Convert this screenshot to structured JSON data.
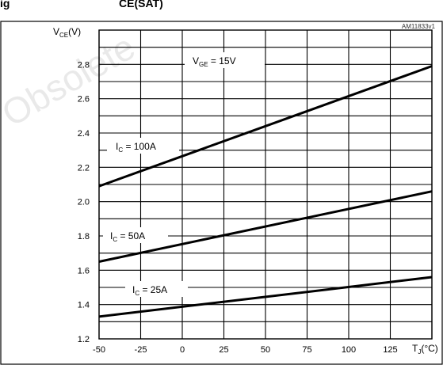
{
  "header": {
    "fragment": "ig",
    "fragment2": "CE(SAT)"
  },
  "watermark": "Obsolete",
  "chart_data": {
    "type": "line",
    "code": "AM11833v1",
    "ylabel": {
      "main": "V",
      "sub": "CE",
      "unit": "(V)"
    },
    "xlabel": {
      "main": "T",
      "sub": "J",
      "unit": "(°C)"
    },
    "xlim": [
      -50,
      150
    ],
    "ylim": [
      1.2,
      3.0
    ],
    "x_ticks": [
      "-50",
      "-25",
      "0",
      "25",
      "50",
      "75",
      "100",
      "125"
    ],
    "y_ticks": [
      "1.2",
      "1.4",
      "1.6",
      "1.8",
      "2.0",
      "2.2",
      "2.4",
      "2.6",
      "2.8"
    ],
    "annotations": {
      "vge": {
        "main": "V",
        "sub": "GE",
        "rest": " = 15V"
      }
    },
    "series": [
      {
        "name": "100A",
        "label": {
          "main": "I",
          "sub": "C",
          "rest": " = 100A"
        },
        "x": [
          -50,
          150
        ],
        "y": [
          2.09,
          2.79
        ]
      },
      {
        "name": "50A",
        "label": {
          "main": "I",
          "sub": "C",
          "rest": " = 50A"
        },
        "x": [
          -50,
          150
        ],
        "y": [
          1.65,
          2.06
        ]
      },
      {
        "name": "25A",
        "label": {
          "main": "I",
          "sub": "C",
          "rest": " = 25A"
        },
        "x": [
          -50,
          150
        ],
        "y": [
          1.33,
          1.56
        ]
      }
    ]
  }
}
